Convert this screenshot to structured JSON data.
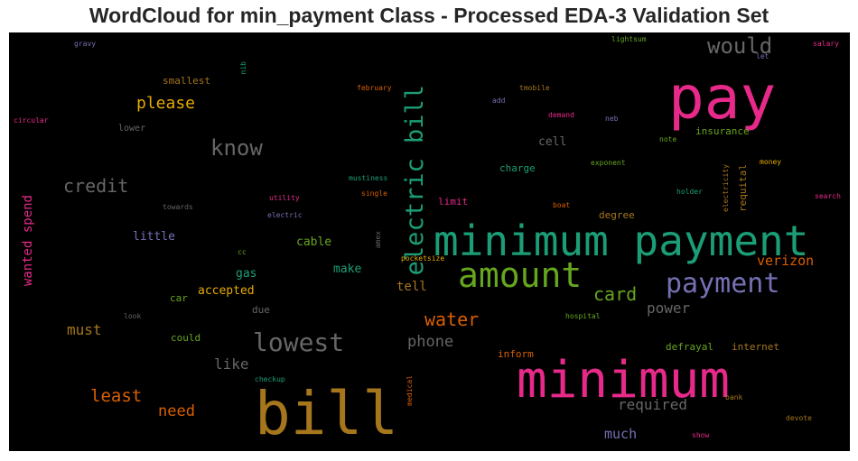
{
  "title": "WordCloud for min_payment Class - Processed EDA-3 Validation Set",
  "chart_data": {
    "type": "wordcloud",
    "background": "#000000",
    "words": [
      {
        "text": "pay",
        "color": "#e7298a"
      },
      {
        "text": "minimum payment",
        "color": "#1b9e77"
      },
      {
        "text": "minimum",
        "color": "#e7298a"
      },
      {
        "text": "bill",
        "color": "#a6761d"
      },
      {
        "text": "electric bill",
        "color": "#1b9e77"
      },
      {
        "text": "amount",
        "color": "#66a61e"
      },
      {
        "text": "payment",
        "color": "#7570b3"
      },
      {
        "text": "lowest",
        "color": "#666666"
      },
      {
        "text": "would",
        "color": "#666666"
      },
      {
        "text": "know",
        "color": "#666666"
      },
      {
        "text": "credit",
        "color": "#666666"
      },
      {
        "text": "water",
        "color": "#d95f02"
      },
      {
        "text": "card",
        "color": "#66a61e"
      },
      {
        "text": "please",
        "color": "#e6ab02"
      },
      {
        "text": "least",
        "color": "#d95f02"
      },
      {
        "text": "phone",
        "color": "#666666"
      },
      {
        "text": "need",
        "color": "#d95f02"
      },
      {
        "text": "wanted spend",
        "color": "#e7298a"
      },
      {
        "text": "verizon",
        "color": "#d95f02"
      },
      {
        "text": "power",
        "color": "#666666"
      },
      {
        "text": "required",
        "color": "#666666"
      },
      {
        "text": "much",
        "color": "#7570b3"
      },
      {
        "text": "like",
        "color": "#666666"
      },
      {
        "text": "must",
        "color": "#a6761d"
      },
      {
        "text": "cable",
        "color": "#66a61e"
      },
      {
        "text": "accepted",
        "color": "#e6ab02"
      },
      {
        "text": "little",
        "color": "#7570b3"
      },
      {
        "text": "tell",
        "color": "#a6761d"
      },
      {
        "text": "make",
        "color": "#1b9e77"
      },
      {
        "text": "cell",
        "color": "#666666"
      },
      {
        "text": "gas",
        "color": "#1b9e77"
      },
      {
        "text": "smallest",
        "color": "#a6761d"
      },
      {
        "text": "insurance",
        "color": "#66a61e"
      },
      {
        "text": "charge",
        "color": "#1b9e77"
      },
      {
        "text": "limit",
        "color": "#e7298a"
      },
      {
        "text": "degree",
        "color": "#a6761d"
      },
      {
        "text": "defrayal",
        "color": "#66a61e"
      },
      {
        "text": "internet",
        "color": "#a6761d"
      },
      {
        "text": "inform",
        "color": "#d95f02"
      },
      {
        "text": "due",
        "color": "#666666"
      },
      {
        "text": "could",
        "color": "#66a61e"
      },
      {
        "text": "car",
        "color": "#66a61e"
      },
      {
        "text": "lower",
        "color": "#666666"
      },
      {
        "text": "circular",
        "color": "#e7298a"
      },
      {
        "text": "gravy",
        "color": "#7570b3"
      },
      {
        "text": "nib",
        "color": "#1b9e77"
      },
      {
        "text": "february",
        "color": "#d95f02"
      },
      {
        "text": "tmobile",
        "color": "#a6761d"
      },
      {
        "text": "add",
        "color": "#7570b3"
      },
      {
        "text": "demand",
        "color": "#e7298a"
      },
      {
        "text": "neb",
        "color": "#7570b3"
      },
      {
        "text": "lightsum",
        "color": "#66a61e"
      },
      {
        "text": "let",
        "color": "#7570b3"
      },
      {
        "text": "salary",
        "color": "#e7298a"
      },
      {
        "text": "note",
        "color": "#66a61e"
      },
      {
        "text": "exponent",
        "color": "#66a61e"
      },
      {
        "text": "money",
        "color": "#e6ab02"
      },
      {
        "text": "electricity",
        "color": "#a6761d"
      },
      {
        "text": "requital",
        "color": "#a6761d"
      },
      {
        "text": "holder",
        "color": "#1b9e77"
      },
      {
        "text": "search",
        "color": "#e7298a"
      },
      {
        "text": "mustiness",
        "color": "#1b9e77"
      },
      {
        "text": "single",
        "color": "#d95f02"
      },
      {
        "text": "utility",
        "color": "#e7298a"
      },
      {
        "text": "towards",
        "color": "#666666"
      },
      {
        "text": "electric",
        "color": "#7570b3"
      },
      {
        "text": "boat",
        "color": "#d95f02"
      },
      {
        "text": "amex",
        "color": "#666666"
      },
      {
        "text": "cc",
        "color": "#66a61e"
      },
      {
        "text": "pocketsize",
        "color": "#e6ab02"
      },
      {
        "text": "look",
        "color": "#666666"
      },
      {
        "text": "hospital",
        "color": "#66a61e"
      },
      {
        "text": "checkup",
        "color": "#1b9e77"
      },
      {
        "text": "medical",
        "color": "#d95f02"
      },
      {
        "text": "bank",
        "color": "#a6761d"
      },
      {
        "text": "devote",
        "color": "#a6761d"
      },
      {
        "text": "show",
        "color": "#e7298a"
      }
    ]
  }
}
